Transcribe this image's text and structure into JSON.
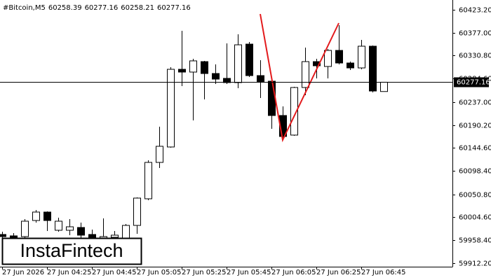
{
  "chart_data": {
    "type": "candlestick",
    "title": "#Bitcoin,M5",
    "watermark": "InstaFintech",
    "categories": [
      "27 Jun 2026",
      null,
      null,
      null,
      "27 Jun 04:25",
      null,
      null,
      null,
      "27 Jun 04:45",
      null,
      null,
      null,
      "27 Jun 05:05",
      null,
      null,
      null,
      "27 Jun 05:25",
      null,
      null,
      null,
      "27 Jun 05:45",
      null,
      null,
      null,
      "27 Jun 06:05",
      null,
      null,
      null,
      "27 Jun 06:25",
      null,
      null,
      null,
      "27 Jun 06:45",
      null,
      null
    ],
    "open": [
      59970.0,
      59967.2,
      59965.7,
      59998.2,
      60015.2,
      59978.5,
      59978.5,
      59984.1,
      59970.0,
      59961.5,
      59964.3,
      59962.9,
      59988.3,
      60042.0,
      60115.4,
      60146.5,
      60303.2,
      60297.6,
      60318.7,
      60294.7,
      60284.9,
      60276.4,
      60354.0,
      60290.5,
      60279.2,
      60210.0,
      60170.5,
      60266.5,
      60318.7,
      60308.9,
      60341.3,
      60315.9,
      60306.0,
      60349.8,
      60258.39
    ],
    "high": [
      59975.6,
      59972.8,
      60001.0,
      60019.4,
      60016.6,
      60003.9,
      60001.0,
      59994.0,
      59979.9,
      60002.5,
      59977.0,
      59991.2,
      60044.8,
      60119.6,
      60187.4,
      60307.4,
      60380.9,
      60324.4,
      60320.2,
      60313.1,
      60355.5,
      60373.8,
      60358.3,
      60321.6,
      60283.4,
      60228.4,
      60267.9,
      60347.0,
      60324.4,
      60344.2,
      60392.2,
      60318.7,
      60362.5,
      60351.2,
      60277.16
    ],
    "low": [
      59961.5,
      59958.7,
      59962.9,
      59994.0,
      59977.0,
      59975.6,
      59968.6,
      59962.9,
      59958.7,
      59955.9,
      59957.3,
      59960.1,
      59971.4,
      60039.2,
      60104.1,
      60145.1,
      60269.3,
      60200.1,
      60242.5,
      60273.6,
      60273.6,
      60265.1,
      60287.7,
      60245.3,
      60183.2,
      60162.0,
      60169.1,
      60251.0,
      60284.9,
      60284.9,
      60313.1,
      60301.8,
      60303.2,
      60256.6,
      60258.21
    ],
    "close": [
      59965.7,
      59962.9,
      59996.8,
      60015.2,
      59998.2,
      59996.8,
      59985.5,
      59968.6,
      59962.9,
      59965.7,
      59968.6,
      59988.3,
      60043.4,
      60115.4,
      60147.9,
      60303.2,
      60297.6,
      60320.2,
      60294.7,
      60283.4,
      60276.4,
      60352.6,
      60290.5,
      60277.8,
      60210.0,
      60167.7,
      60266.5,
      60318.7,
      60310.3,
      60341.3,
      60315.9,
      60306.0,
      60349.8,
      60259.4,
      60277.16
    ],
    "price_line": 60277.16,
    "ylim": [
      59905.0,
      60443.0
    ],
    "yticks": [
      {
        "value": 60423.2,
        "label": "60423.20"
      },
      {
        "value": 60377.0,
        "label": "60377.00"
      },
      {
        "value": 60330.8,
        "label": "60330.80"
      },
      {
        "value": 60284.6,
        "label": "60284.60"
      },
      {
        "value": 60237.0,
        "label": "60237.00"
      },
      {
        "value": 60190.2,
        "label": "60190.20"
      },
      {
        "value": 60144.6,
        "label": "60144.60"
      },
      {
        "value": 60098.4,
        "label": "60098.40"
      },
      {
        "value": 60050.8,
        "label": "60050.80"
      },
      {
        "value": 60004.6,
        "label": "60004.60"
      },
      {
        "value": 59958.4,
        "label": "59958.40"
      },
      {
        "value": 59912.2,
        "label": "59912.20"
      }
    ],
    "up_color": "#ffffff",
    "down_color": "#000000",
    "pattern_color": "#e31a1c"
  }
}
